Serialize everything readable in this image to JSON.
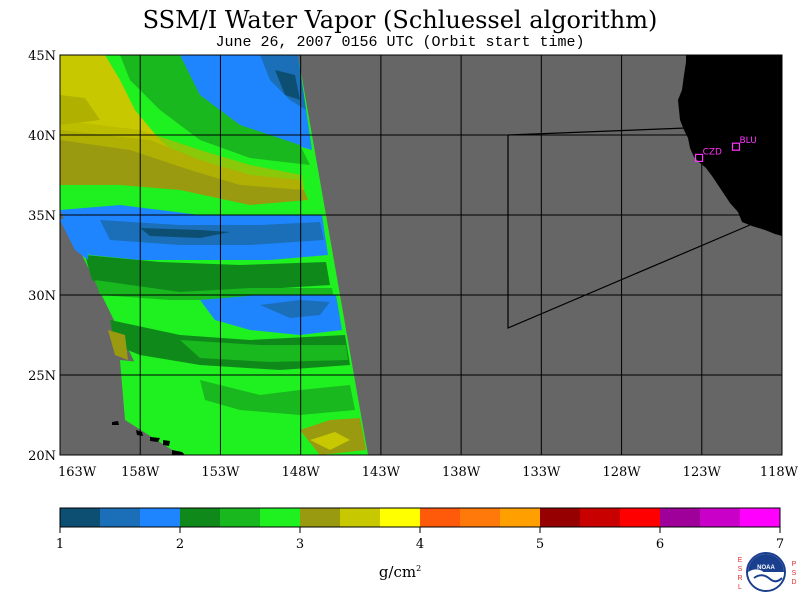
{
  "title": "SSM/I Water Vapor (Schluessel algorithm)",
  "subtitle": "June 26, 2007  0156 UTC  (Orbit start time)",
  "map": {
    "lat_labels": [
      "45N",
      "40N",
      "35N",
      "30N",
      "25N",
      "20N"
    ],
    "lat_values": [
      45,
      40,
      35,
      30,
      25,
      20
    ],
    "lon_labels": [
      "163W",
      "158W",
      "153W",
      "148W",
      "143W",
      "138W",
      "133W",
      "128W",
      "123W",
      "118W"
    ],
    "lon_values": [
      -163,
      -158,
      -153,
      -148,
      -143,
      -138,
      -133,
      -128,
      -123,
      -118
    ],
    "lat_range": [
      20,
      45
    ],
    "lon_range": [
      -163,
      -118
    ],
    "background_color": "#666666",
    "land_color": "#000000",
    "sites": [
      {
        "label": "CZD",
        "lon": -123.2,
        "lat": 38.6
      },
      {
        "label": "BLU",
        "lon": -120.9,
        "lat": 39.3
      }
    ]
  },
  "colorbar": {
    "tick_labels": [
      "1",
      "2",
      "3",
      "4",
      "5",
      "6",
      "7"
    ],
    "min": 1,
    "max": 7,
    "colors": [
      "#0d4f73",
      "#1a6fb8",
      "#1f85ff",
      "#0f8a1a",
      "#19b81f",
      "#1ff01f",
      "#9a9a10",
      "#c8c800",
      "#ffff00",
      "#ff5a0a",
      "#ff780a",
      "#ffa000",
      "#960000",
      "#c80000",
      "#ff0000",
      "#a0009a",
      "#c800c8",
      "#ff00ff"
    ],
    "units": "g/cm",
    "units_exp": "2"
  },
  "logo": {
    "left_letters": [
      "E",
      "S",
      "R",
      "L"
    ],
    "right_letters": [
      "P",
      "S",
      "D"
    ],
    "text": "NOAA"
  }
}
